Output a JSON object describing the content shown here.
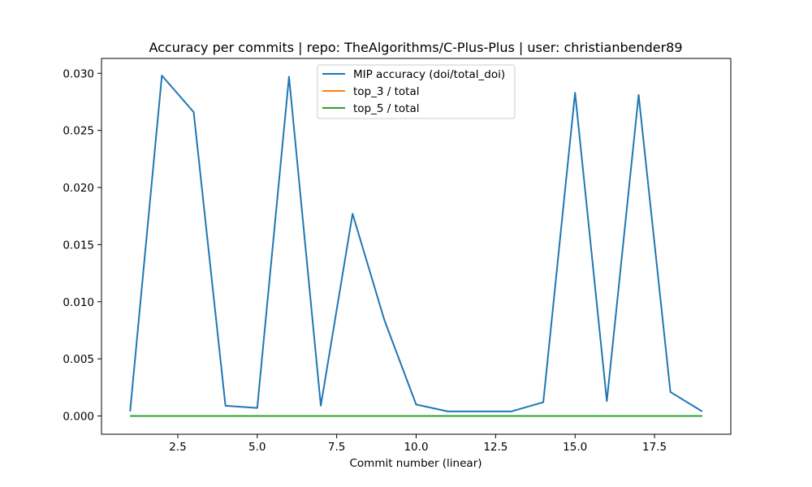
{
  "chart_data": {
    "type": "line",
    "title": "Accuracy per commits | repo: TheAlgorithms/C-Plus-Plus | user: christianbender89",
    "xlabel": "Commit number (linear)",
    "ylabel": "",
    "x": [
      1,
      2,
      3,
      4,
      5,
      6,
      7,
      8,
      9,
      10,
      11,
      12,
      13,
      14,
      15,
      16,
      17,
      18,
      19
    ],
    "xlim": [
      0.1,
      19.9
    ],
    "ylim": [
      -0.0016,
      0.0313
    ],
    "xticks": [
      2.5,
      5.0,
      7.5,
      10.0,
      12.5,
      15.0,
      17.5
    ],
    "xtick_labels": [
      "2.5",
      "5.0",
      "7.5",
      "10.0",
      "12.5",
      "15.0",
      "17.5"
    ],
    "yticks": [
      0.0,
      0.005,
      0.01,
      0.015,
      0.02,
      0.025,
      0.03
    ],
    "ytick_labels": [
      "0.000",
      "0.005",
      "0.010",
      "0.015",
      "0.020",
      "0.025",
      "0.030"
    ],
    "grid": false,
    "legend_position": "top-center",
    "series": [
      {
        "name": "MIP accuracy (doi/total_doi)",
        "color": "#1f77b4",
        "values": [
          0.0004,
          0.0298,
          0.0266,
          0.0009,
          0.0007,
          0.0297,
          0.0009,
          0.0177,
          0.0084,
          0.001,
          0.0004,
          0.0004,
          0.0004,
          0.0012,
          0.0283,
          0.0013,
          0.0281,
          0.0021,
          0.0004
        ]
      },
      {
        "name": "top_3 / total",
        "color": "#ff7f0e",
        "values": [
          0,
          0,
          0,
          0,
          0,
          0,
          0,
          0,
          0,
          0,
          0,
          0,
          0,
          0,
          0,
          0,
          0,
          0,
          0
        ]
      },
      {
        "name": "top_5 / total",
        "color": "#2ca02c",
        "values": [
          0,
          0,
          0,
          0,
          0,
          0,
          0,
          0,
          0,
          0,
          0,
          0,
          0,
          0,
          0,
          0,
          0,
          0,
          0
        ]
      }
    ]
  }
}
